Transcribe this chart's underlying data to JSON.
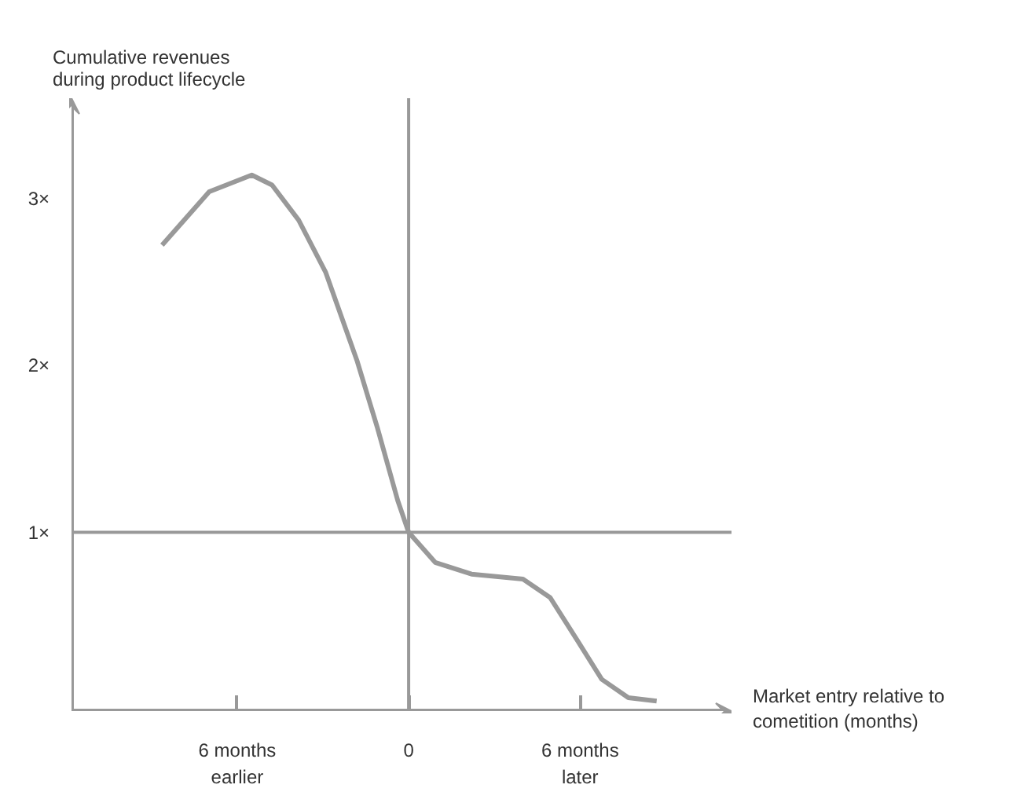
{
  "chart_data": {
    "type": "line",
    "title": "Cumulative revenues\nduring product lifecycle",
    "xlabel": "Market entry relative to\ncometition (months)",
    "x": [
      -8.63,
      -6.98,
      -5.49,
      -4.78,
      -3.85,
      -2.91,
      -1.81,
      -1.1,
      -0.38,
      0,
      0.93,
      2.2,
      4.0,
      4.95,
      5.88,
      6.76,
      7.69,
      8.68
    ],
    "series": [
      {
        "color": "#999999",
        "values": [
          2.72,
          3.04,
          3.14,
          3.08,
          2.87,
          2.56,
          2.03,
          1.63,
          1.19,
          1.0,
          0.82,
          0.75,
          0.72,
          0.61,
          0.36,
          0.12,
          0.01,
          -0.01
        ]
      }
    ],
    "xlim": [
      -11.8,
      11.3
    ],
    "ylim": [
      -0.07,
      3.6
    ],
    "xticks": [
      {
        "value": -6,
        "label": "6 months\nearlier"
      },
      {
        "value": 0,
        "label": "0"
      },
      {
        "value": 6,
        "label": "6 months\nlater"
      }
    ],
    "yticks": [
      {
        "value": 1,
        "label": "1×"
      },
      {
        "value": 2,
        "label": "2×"
      },
      {
        "value": 3,
        "label": "3×"
      }
    ],
    "ref_lines": [
      {
        "axis": "x",
        "value": 0,
        "label": null,
        "color": "#999999"
      },
      {
        "axis": "y",
        "value": 1,
        "label": null,
        "color": "#999999"
      }
    ],
    "grid": false,
    "marker": "none",
    "line_style": "solid"
  }
}
